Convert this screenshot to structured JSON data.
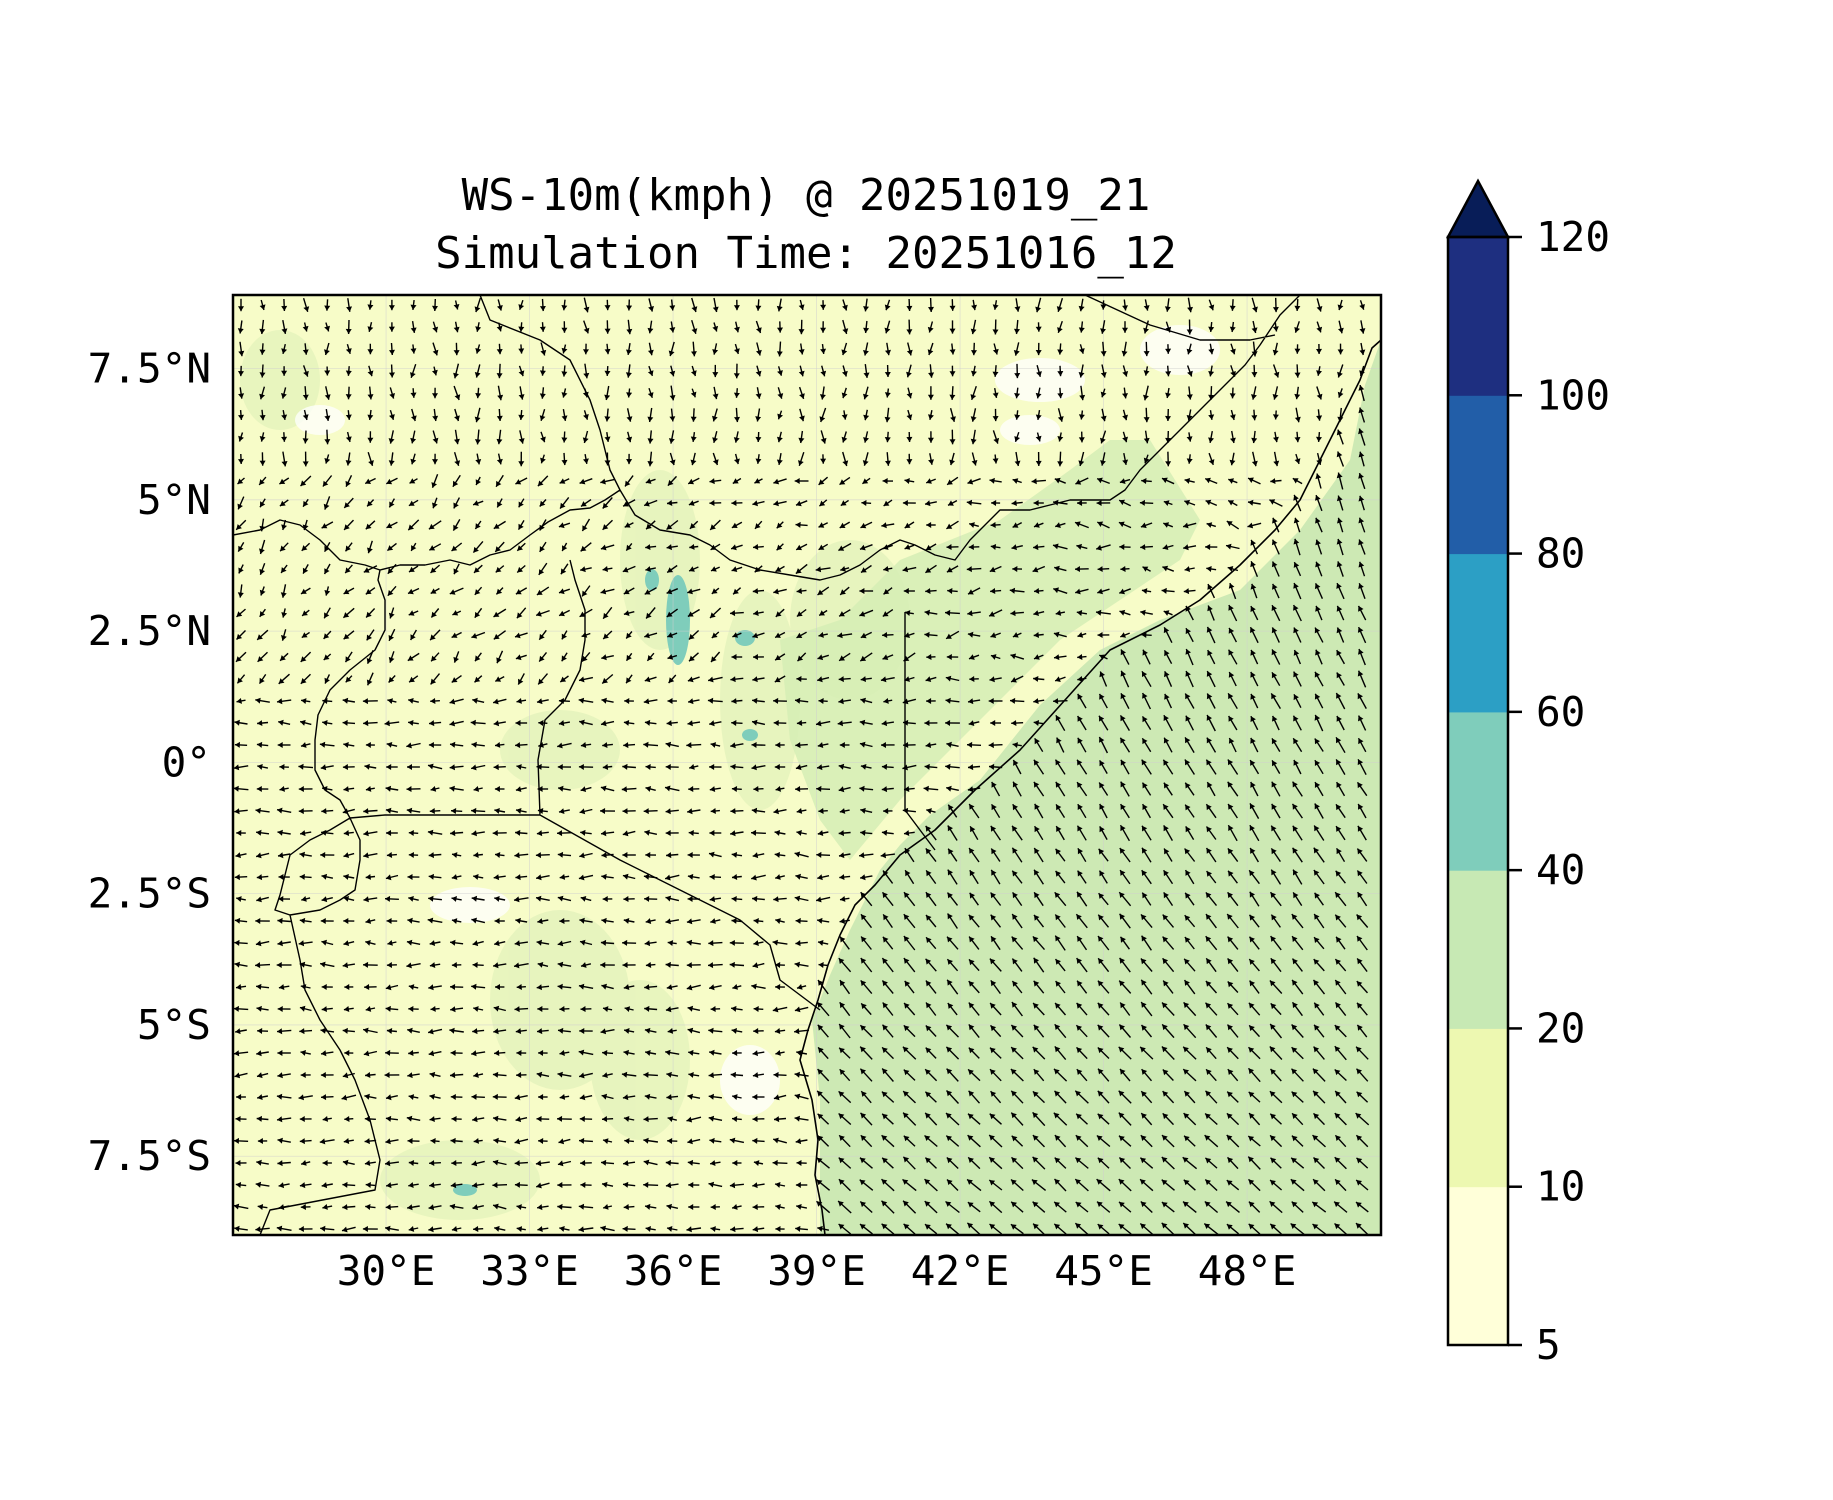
{
  "figure": {
    "title": "WS-10m(kmph) @ 20251019_21",
    "subtitle": "Simulation Time: 20251016_12"
  },
  "map": {
    "lon_range": [
      26.8,
      50.8
    ],
    "lat_range": [
      -9.0,
      8.9
    ],
    "x_ticks": [
      {
        "value": 30,
        "label": "30°E"
      },
      {
        "value": 33,
        "label": "33°E"
      },
      {
        "value": 36,
        "label": "36°E"
      },
      {
        "value": 39,
        "label": "39°E"
      },
      {
        "value": 42,
        "label": "42°E"
      },
      {
        "value": 45,
        "label": "45°E"
      },
      {
        "value": 48,
        "label": "48°E"
      }
    ],
    "y_ticks": [
      {
        "value": 7.5,
        "label": "7.5°N"
      },
      {
        "value": 5,
        "label": "5°N"
      },
      {
        "value": 2.5,
        "label": "2.5°N"
      },
      {
        "value": 0,
        "label": "0°"
      },
      {
        "value": -2.5,
        "label": "2.5°S"
      },
      {
        "value": -5,
        "label": "5°S"
      },
      {
        "value": -7.5,
        "label": "7.5°S"
      }
    ],
    "background_fill": "#f7fcc8",
    "ocean_fill": "#cde9b4",
    "vector_color": "#000000"
  },
  "colorbar": {
    "levels": [
      {
        "value": 5,
        "label": "5"
      },
      {
        "value": 10,
        "label": "10"
      },
      {
        "value": 20,
        "label": "20"
      },
      {
        "value": 40,
        "label": "40"
      },
      {
        "value": 60,
        "label": "60"
      },
      {
        "value": 80,
        "label": "80"
      },
      {
        "value": 100,
        "label": "100"
      },
      {
        "value": 120,
        "label": "120"
      }
    ],
    "colors": [
      "#ffffd9",
      "#edf8b1",
      "#c7e9b4",
      "#7fcdbb",
      "#2c9fc5",
      "#225ea8",
      "#1e2f80"
    ],
    "extend_color": "#081d58",
    "extend": "max"
  }
}
